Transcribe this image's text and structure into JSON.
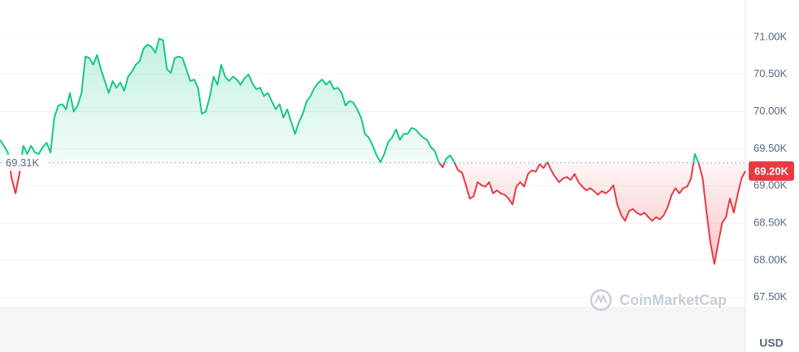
{
  "chart_data": {
    "type": "line",
    "values": [
      69.62,
      69.54,
      69.45,
      69.1,
      68.9,
      69.16,
      69.54,
      69.43,
      69.54,
      69.45,
      69.43,
      69.52,
      69.58,
      69.45,
      69.92,
      70.08,
      70.1,
      70.03,
      70.25,
      70.0,
      70.08,
      70.25,
      70.74,
      70.72,
      70.63,
      70.76,
      70.57,
      70.41,
      70.25,
      70.41,
      70.32,
      70.39,
      70.28,
      70.47,
      70.54,
      70.63,
      70.68,
      70.85,
      70.9,
      70.87,
      70.79,
      70.98,
      70.96,
      70.57,
      70.52,
      70.72,
      70.74,
      70.72,
      70.57,
      70.41,
      70.43,
      70.32,
      69.97,
      70.0,
      70.19,
      70.47,
      70.36,
      70.63,
      70.47,
      70.41,
      70.47,
      70.43,
      70.36,
      70.45,
      70.5,
      70.38,
      70.3,
      70.32,
      70.21,
      70.25,
      70.14,
      70.03,
      70.1,
      69.92,
      70.03,
      69.86,
      69.7,
      69.86,
      69.97,
      70.14,
      70.21,
      70.32,
      70.39,
      70.43,
      70.36,
      70.41,
      70.3,
      70.32,
      70.25,
      70.08,
      70.14,
      70.12,
      70.03,
      69.92,
      69.7,
      69.65,
      69.54,
      69.41,
      69.32,
      69.43,
      69.59,
      69.65,
      69.76,
      69.62,
      69.7,
      69.7,
      69.78,
      69.76,
      69.7,
      69.65,
      69.62,
      69.52,
      69.47,
      69.32,
      69.25,
      69.37,
      69.41,
      69.32,
      69.21,
      69.18,
      69.01,
      68.83,
      68.86,
      69.05,
      69.01,
      68.99,
      69.05,
      68.9,
      68.94,
      68.9,
      68.88,
      68.83,
      68.75,
      68.99,
      69.05,
      68.99,
      69.16,
      69.21,
      69.19,
      69.29,
      69.24,
      69.32,
      69.21,
      69.12,
      69.05,
      69.1,
      69.12,
      69.08,
      69.16,
      69.05,
      68.99,
      68.94,
      68.97,
      68.93,
      68.88,
      68.93,
      68.9,
      68.94,
      69.01,
      68.75,
      68.61,
      68.53,
      68.66,
      68.69,
      68.64,
      68.61,
      68.64,
      68.58,
      68.53,
      68.58,
      68.55,
      68.61,
      68.72,
      68.88,
      68.97,
      68.9,
      68.97,
      68.99,
      69.1,
      69.43,
      69.3,
      69.1,
      68.64,
      68.23,
      67.95,
      68.23,
      68.5,
      68.58,
      68.83,
      68.64,
      68.88,
      69.1,
      69.2
    ],
    "up_color": "#16c784",
    "down_color": "#ea3943",
    "ylim": [
      67.41,
      71.5
    ],
    "yticks": [
      {
        "value": 71,
        "label": "71.00K"
      },
      {
        "value": 70.5,
        "label": "70.50K"
      },
      {
        "value": 70,
        "label": "70.00K"
      },
      {
        "value": 69.5,
        "label": "69.50K"
      },
      {
        "value": 69,
        "label": "69.00K"
      },
      {
        "value": 68.5,
        "label": "68.50K"
      },
      {
        "value": 68,
        "label": "68.00K"
      },
      {
        "value": 67.5,
        "label": "67.50K"
      }
    ],
    "baseline": {
      "value": 69.31,
      "label": "69.31K"
    },
    "last_price": {
      "value": 69.2,
      "label": "69.20K"
    },
    "currency": "USD",
    "watermark": "CoinMarketCap",
    "grid": true
  }
}
